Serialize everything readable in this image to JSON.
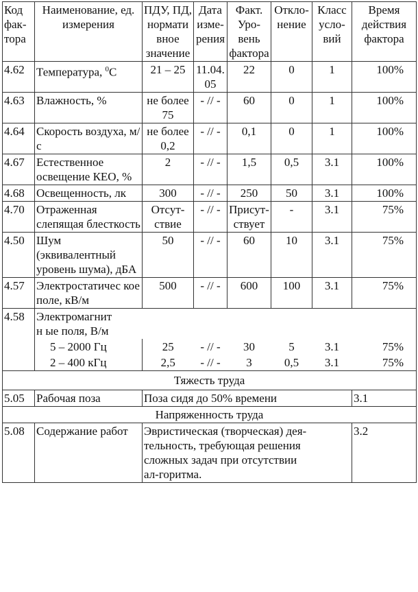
{
  "headers": [
    "Код фак-тора",
    "Наименование, ед. измерения",
    "ПДУ, ПД, нормати вное значение",
    "Дата изме-рения",
    "Факт. Уро-вень фактора",
    "Откло-нение",
    "Класс усло-вий",
    "Время действия фактора"
  ],
  "rows": [
    {
      "code": "4.62",
      "name": "Температура, ",
      "name_sup": "0",
      "name_suffix": "С",
      "pdu": "21 – 25",
      "date": "11.04. 05",
      "fact": "22",
      "dev": "0",
      "cls": "1",
      "time": "100%"
    },
    {
      "code": "4.63",
      "name": "Влажность, %",
      "pdu": "не более 75",
      "date": "- // -",
      "fact": "60",
      "dev": "0",
      "cls": "1",
      "time": "100%"
    },
    {
      "code": "4.64",
      "name": "Скорость воздуха, м/с",
      "pdu": "не более 0,2",
      "date": "- // -",
      "fact": "0,1",
      "dev": "0",
      "cls": "1",
      "time": "100%"
    },
    {
      "code": "4.67",
      "name": "Естественное освещение КЕО, %",
      "pdu": "2",
      "date": "- // -",
      "fact": "1,5",
      "dev": "0,5",
      "cls": "3.1",
      "time": "100%"
    },
    {
      "code": "4.68",
      "name": "Освещенность, лк",
      "pdu": "300",
      "date": "- // -",
      "fact": "250",
      "dev": "50",
      "cls": "3.1",
      "time": "100%"
    },
    {
      "code": "4.70",
      "name": "Отраженная слепящая блесткость",
      "pdu": "Отсут-ствие",
      "date": "- // -",
      "fact": "Присут-ствует",
      "dev": "-",
      "cls": "3.1",
      "time": "75%"
    },
    {
      "code": "4.50",
      "name": "Шум (эквивалентный уровень шума), дБА",
      "pdu": "50",
      "date": "- // -",
      "fact": "60",
      "dev": "10",
      "cls": "3.1",
      "time": "75%"
    },
    {
      "code": "4.57",
      "name": "Электростатичес кое поле, кВ/м",
      "pdu": "500",
      "date": "- // -",
      "fact": "600",
      "dev": "100",
      "cls": "3.1",
      "time": "75%"
    }
  ],
  "em": {
    "code": "4.58",
    "name": "Электромагнитн ые поля, В/м",
    "sub": [
      {
        "name": "5 – 2000 Гц",
        "pdu": "25",
        "date": "- // -",
        "fact": "30",
        "dev": "5",
        "cls": "3.1",
        "time": "75%"
      },
      {
        "name": "2 – 400 кГц",
        "pdu": "2,5",
        "date": "- // -",
        "fact": "3",
        "dev": "0,5",
        "cls": "3.1",
        "time": "75%"
      }
    ]
  },
  "section1": "Тяжесть труда",
  "r505": {
    "code": "5.05",
    "name": "Рабочая поза",
    "desc": "Поза сидя до 50% времени",
    "cls": "3.1"
  },
  "section2": "Напряженность труда",
  "r508": {
    "code": "5.08",
    "name": "Содержание работ",
    "desc": "Эвристическая (творческая) дея-тельность, требующая решения сложных задач при отсутствии ал-горитма.",
    "cls": "3.2"
  }
}
